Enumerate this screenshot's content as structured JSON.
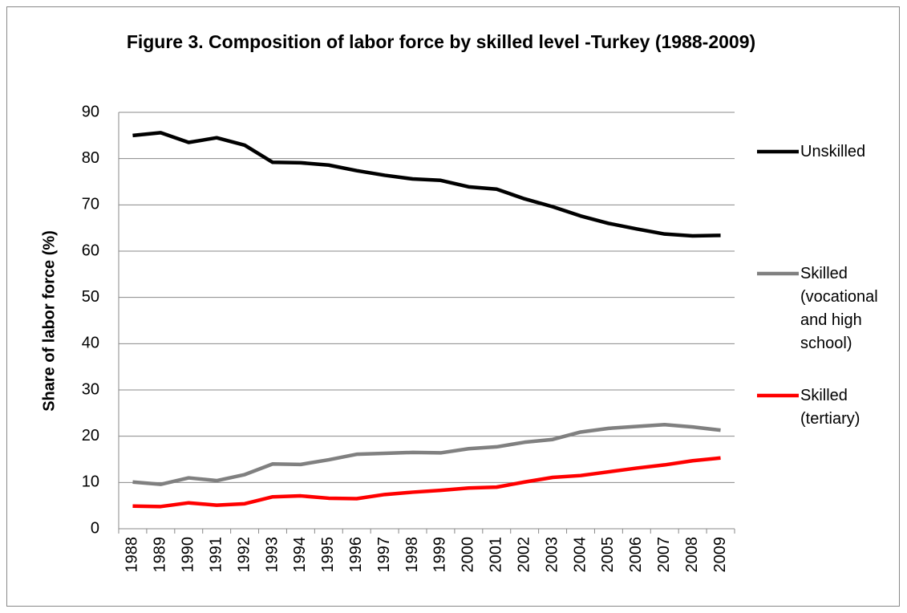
{
  "chart_data": {
    "type": "line",
    "title": "Figure 3. Composition of labor force by skilled level -Turkey (1988-2009)",
    "y_label": "Share of labor force (%)",
    "categories": [
      "1988",
      "1989",
      "1990",
      "1991",
      "1992",
      "1993",
      "1994",
      "1995",
      "1996",
      "1997",
      "1998",
      "1999",
      "2000",
      "2001",
      "2002",
      "2003",
      "2004",
      "2005",
      "2006",
      "2007",
      "2008",
      "2009"
    ],
    "series": [
      {
        "name": "Unskilled",
        "color": "#000000",
        "values": [
          85,
          85.6,
          83.5,
          84.5,
          82.9,
          79.2,
          79.1,
          78.6,
          77.4,
          76.4,
          75.6,
          75.3,
          73.9,
          73.4,
          71.3,
          69.6,
          67.6,
          66,
          64.8,
          63.7,
          63.3,
          63.4
        ]
      },
      {
        "name": "Skilled (vocational and high school)",
        "color": "#808080",
        "values": [
          10.1,
          9.6,
          11,
          10.4,
          11.7,
          14,
          13.9,
          14.9,
          16.1,
          16.3,
          16.5,
          16.4,
          17.3,
          17.7,
          18.7,
          19.3,
          20.9,
          21.7,
          22.1,
          22.5,
          22,
          21.3
        ]
      },
      {
        "name": "Skilled (tertiary)",
        "color": "#ff0000",
        "values": [
          4.9,
          4.8,
          5.6,
          5.1,
          5.4,
          6.9,
          7.1,
          6.6,
          6.5,
          7.4,
          7.9,
          8.3,
          8.8,
          9.0,
          10.1,
          11.1,
          11.5,
          12.3,
          13.1,
          13.8,
          14.7,
          15.3
        ]
      }
    ],
    "ylim": [
      0,
      90
    ],
    "yticks": [
      0,
      10,
      20,
      30,
      40,
      50,
      60,
      70,
      80,
      90
    ],
    "grid": true,
    "legend": "right"
  }
}
